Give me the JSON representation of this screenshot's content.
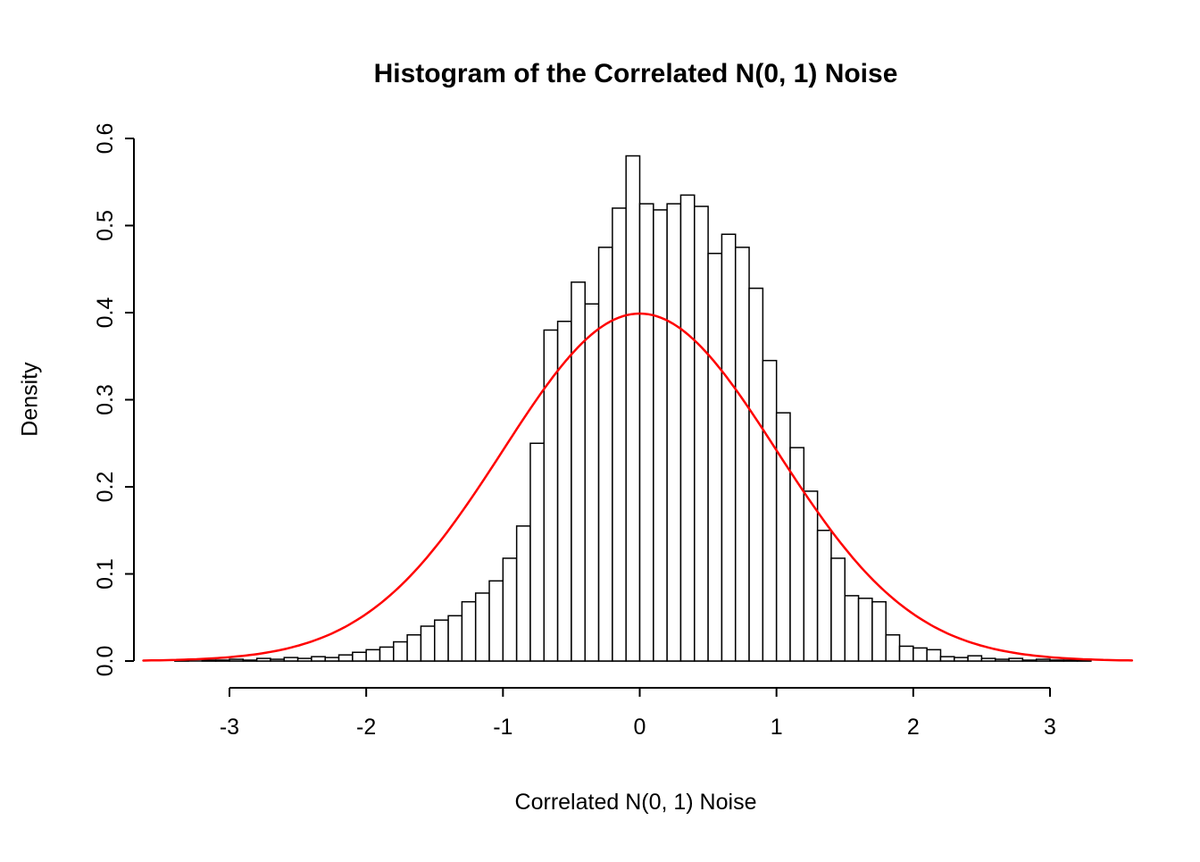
{
  "chart_data": {
    "type": "bar",
    "subtype": "histogram-with-density-curve",
    "title": "Histogram of the Correlated N(0, 1) Noise",
    "xlabel": "Correlated N(0, 1) Noise",
    "ylabel": "Density",
    "xlim": [
      -3.63,
      3.6
    ],
    "ylim": [
      0,
      0.6
    ],
    "x_ticks": [
      -3,
      -2,
      -1,
      0,
      1,
      2,
      3
    ],
    "y_tick_labels": [
      "0.0",
      "0.1",
      "0.2",
      "0.3",
      "0.4",
      "0.5",
      "0.6"
    ],
    "grid": false,
    "legend": "none",
    "bin_start": -3.4,
    "bin_width": 0.1,
    "densities": [
      0.001,
      0.0,
      0.001,
      0.001,
      0.002,
      0.001,
      0.003,
      0.002,
      0.004,
      0.003,
      0.005,
      0.004,
      0.007,
      0.01,
      0.013,
      0.016,
      0.022,
      0.03,
      0.04,
      0.047,
      0.052,
      0.068,
      0.078,
      0.092,
      0.118,
      0.155,
      0.25,
      0.38,
      0.39,
      0.435,
      0.41,
      0.475,
      0.52,
      0.58,
      0.525,
      0.518,
      0.525,
      0.535,
      0.522,
      0.468,
      0.49,
      0.475,
      0.428,
      0.345,
      0.285,
      0.245,
      0.195,
      0.15,
      0.118,
      0.075,
      0.072,
      0.068,
      0.03,
      0.017,
      0.015,
      0.013,
      0.005,
      0.004,
      0.006,
      0.003,
      0.002,
      0.003,
      0.001,
      0.002,
      0.001,
      0.001,
      0.001
    ],
    "curve": {
      "label": "N(0, 1) density",
      "mean": 0,
      "sd": 1,
      "peak": 0.3989,
      "color": "#ff0000"
    },
    "bar_fill": "#ffffff",
    "bar_stroke": "#000000",
    "axis_color": "#000000",
    "background": "#ffffff"
  }
}
